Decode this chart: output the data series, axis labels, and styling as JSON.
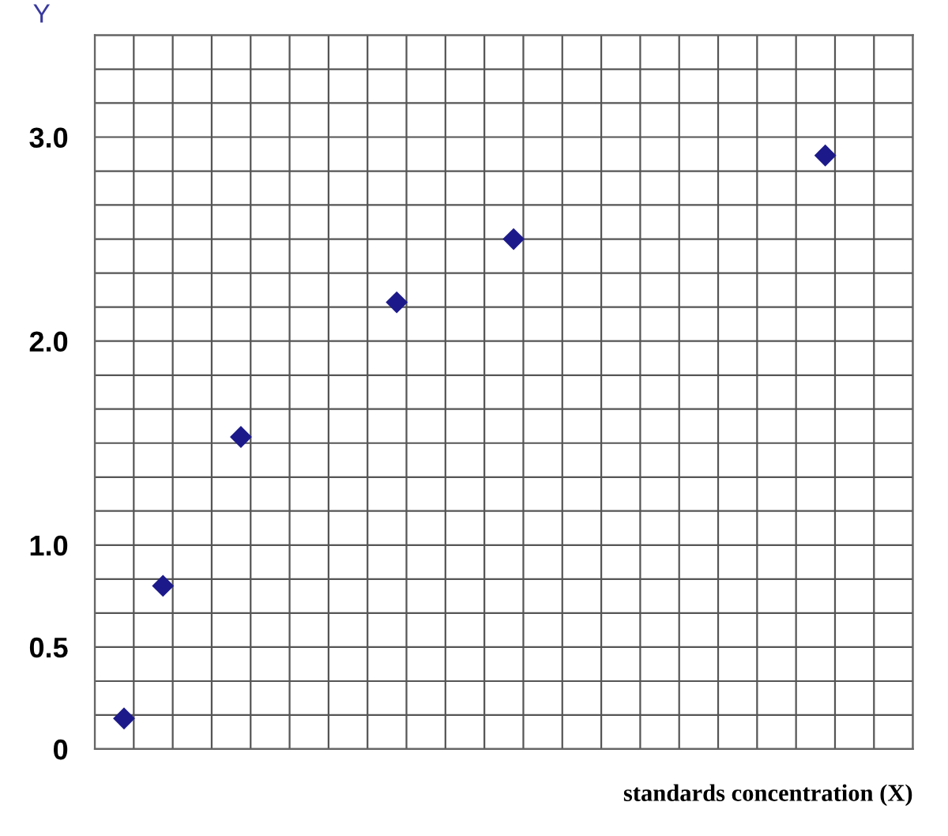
{
  "chart_data": {
    "type": "scatter",
    "xlabel": "standards concentration (X)",
    "ylabel": "Y",
    "categories": [
      null,
      null,
      null,
      null,
      null,
      null,
      null,
      null,
      null,
      null,
      null,
      null,
      null,
      null,
      null,
      null,
      null,
      null,
      null,
      null,
      null,
      null,
      null,
      null,
      null,
      null,
      null,
      null,
      null,
      null,
      null,
      null,
      null,
      null,
      null,
      null,
      null,
      null,
      null,
      null,
      null,
      null
    ],
    "series": [
      {
        "color": "#1c1a8a",
        "values": [
          null,
          0.15,
          null,
          0.8,
          null,
          null,
          null,
          1.53,
          null,
          null,
          null,
          null,
          null,
          null,
          null,
          2.19,
          null,
          null,
          null,
          null,
          null,
          2.5,
          null,
          null,
          null,
          null,
          null,
          null,
          null,
          null,
          null,
          null,
          null,
          null,
          null,
          null,
          null,
          2.91,
          null,
          null,
          null,
          null
        ]
      }
    ],
    "marker": "diamond",
    "grid": true,
    "tick_labels": "y",
    "ylim": [
      0,
      3.5
    ],
    "yticks": [
      {
        "value": 0,
        "label": "0"
      },
      {
        "value": 0.167,
        "label": null
      },
      {
        "value": 0.333,
        "label": null
      },
      {
        "value": 0.5,
        "label": "0.5"
      },
      {
        "value": 0.667,
        "label": null
      },
      {
        "value": 0.833,
        "label": null
      },
      {
        "value": 1.0,
        "label": "1.0"
      },
      {
        "value": 1.167,
        "label": null
      },
      {
        "value": 1.333,
        "label": null
      },
      {
        "value": 1.5,
        "label": null
      },
      {
        "value": 1.667,
        "label": null
      },
      {
        "value": 1.833,
        "label": null
      },
      {
        "value": 2.0,
        "label": "2.0"
      },
      {
        "value": 2.167,
        "label": null
      },
      {
        "value": 2.333,
        "label": null
      },
      {
        "value": 2.5,
        "label": null
      },
      {
        "value": 2.667,
        "label": null
      },
      {
        "value": 2.833,
        "label": null
      },
      {
        "value": 3.0,
        "label": "3.0"
      },
      {
        "value": 3.167,
        "label": null
      },
      {
        "value": 3.333,
        "label": null
      },
      {
        "value": 3.5,
        "label": null
      }
    ]
  }
}
